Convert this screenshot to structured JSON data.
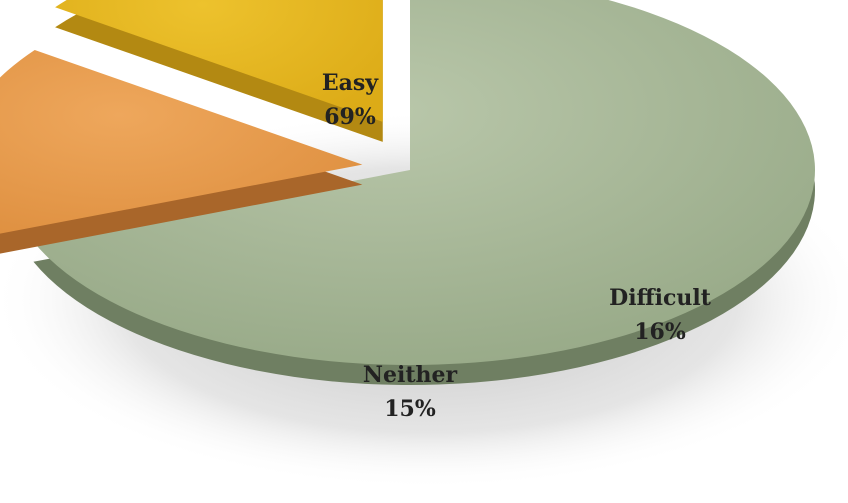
{
  "chart_data": {
    "type": "pie",
    "title": "",
    "slices": [
      {
        "label": "Easy",
        "value": 69,
        "value_label": "69%",
        "color": "#a6b896",
        "exploded": false
      },
      {
        "label": "Difficult",
        "value": 16,
        "value_label": "16%",
        "color": "#e89c50",
        "exploded": true
      },
      {
        "label": "Neither",
        "value": 15,
        "value_label": "15%",
        "color": "#e8b824",
        "exploded": true
      }
    ],
    "style": "3d-exploded"
  }
}
